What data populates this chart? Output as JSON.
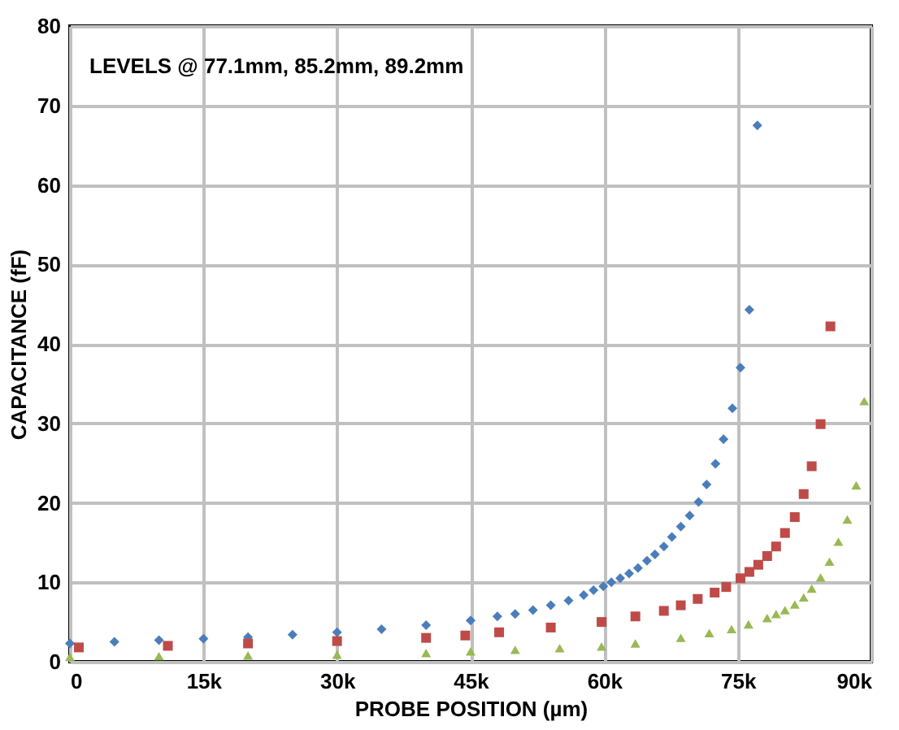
{
  "chart_data": {
    "type": "scatter",
    "xlabel": "PROBE POSITION (µm)",
    "ylabel": "CAPACITANCE (fF)",
    "annotations": [
      "LEVELS @ 77.1mm, 85.2mm, 89.2mm"
    ],
    "xlim": [
      0,
      90000
    ],
    "xticks": [
      0,
      {
        "value": 15000,
        "label": "15k"
      },
      {
        "value": 30000,
        "label": "30k"
      },
      {
        "value": 45000,
        "label": "45k"
      },
      {
        "value": 60000,
        "label": "60k"
      },
      {
        "value": 75000,
        "label": "75k"
      },
      {
        "value": 90000,
        "label": "90k"
      }
    ],
    "ylim": [
      0,
      80
    ],
    "yticks": [
      0,
      10,
      20,
      30,
      40,
      50,
      60,
      70,
      80
    ],
    "grid": true,
    "series": [
      {
        "color": "#4a7ebb",
        "marker": "diamond",
        "x": [
          0,
          5000,
          10000,
          15000,
          20000,
          25000,
          30000,
          35000,
          40000,
          45000,
          48000,
          50000,
          52000,
          54000,
          56000,
          57700,
          58800,
          59900,
          60800,
          61800,
          62800,
          63800,
          64800,
          65700,
          66700,
          67600,
          68600,
          69600,
          70600,
          71500,
          72500,
          73400,
          74400,
          75300,
          76300,
          77200
        ],
        "values": [
          2.3,
          2.5,
          2.7,
          2.9,
          3.1,
          3.4,
          3.7,
          4.1,
          4.6,
          5.2,
          5.7,
          6.0,
          6.5,
          7.1,
          7.7,
          8.4,
          9.0,
          9.5,
          10.0,
          10.5,
          11.1,
          11.8,
          12.7,
          13.5,
          14.5,
          15.7,
          17.0,
          18.4,
          20.1,
          22.3,
          24.9,
          28.0,
          31.9,
          37.0,
          44.3,
          67.5
        ]
      },
      {
        "color": "#be4b48",
        "marker": "square",
        "x": [
          1000,
          11000,
          20000,
          30000,
          40000,
          44400,
          48200,
          54000,
          59700,
          63500,
          66700,
          68600,
          70500,
          72400,
          73700,
          75300,
          76300,
          77300,
          78300,
          79300,
          80300,
          81400,
          82400,
          83300,
          84300,
          85400
        ],
        "values": [
          1.8,
          2.0,
          2.3,
          2.6,
          3.0,
          3.3,
          3.7,
          4.3,
          5.0,
          5.7,
          6.4,
          7.1,
          7.9,
          8.7,
          9.4,
          10.5,
          11.3,
          12.2,
          13.3,
          14.5,
          16.2,
          18.2,
          21.1,
          24.6,
          29.9,
          42.2
        ]
      },
      {
        "color": "#98b954",
        "marker": "triangle",
        "x": [
          0,
          10000,
          20000,
          30000,
          40000,
          45000,
          50000,
          55000,
          59700,
          63500,
          68600,
          71800,
          74300,
          76200,
          78300,
          79300,
          80300,
          81400,
          82400,
          83300,
          84300,
          85300,
          86300,
          87300,
          88300,
          89200
        ],
        "values": [
          0.6,
          0.7,
          0.8,
          0.9,
          1.1,
          1.3,
          1.5,
          1.7,
          1.9,
          2.3,
          3.0,
          3.6,
          4.1,
          4.7,
          5.5,
          6.0,
          6.5,
          7.2,
          8.1,
          9.2,
          10.6,
          12.6,
          15.1,
          17.9,
          22.2,
          32.8
        ]
      }
    ]
  }
}
